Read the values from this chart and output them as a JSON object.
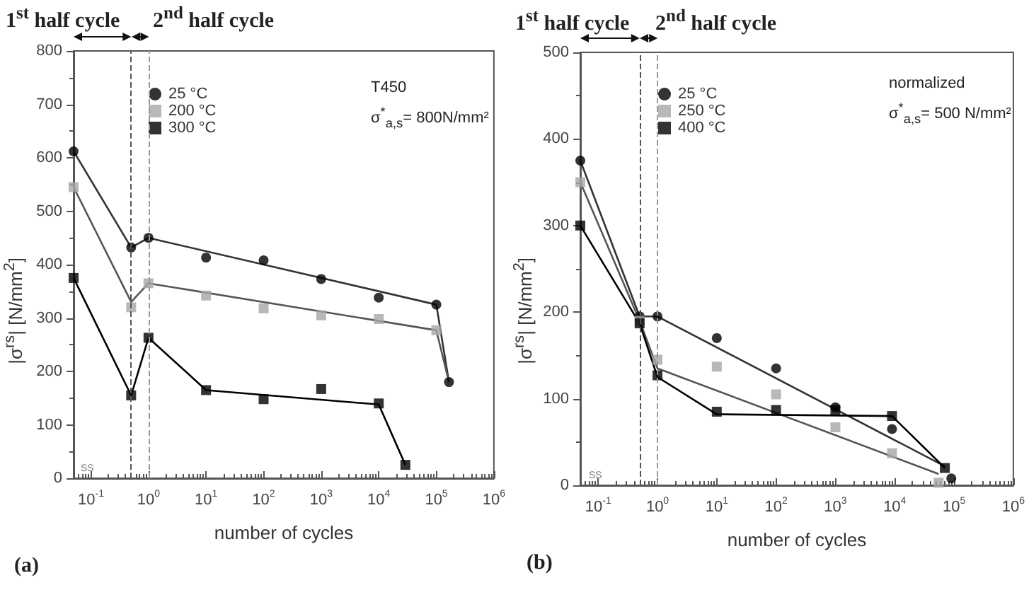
{
  "chart_data": [
    {
      "type": "scatter",
      "xlabel": "number of cycles",
      "ylabel": "|σ$^{rs}$| [N/mm$^{2}$]",
      "annotations": [
        "1$^{st}$ half cycle",
        "2$^{nd}$ half cycle",
        "T450",
        "σ$^{*}$$_{a,s}$= 800N/mm²",
        "SS",
        "(a)"
      ],
      "xlim": [
        0.05,
        1000000
      ],
      "ylim": [
        0,
        800
      ],
      "xticks": [
        {
          "value": 0.1,
          "label": "10$^{-1}$"
        },
        {
          "value": 1,
          "label": "10$^{0}$"
        },
        {
          "value": 10,
          "label": "10$^{1}$"
        },
        {
          "value": 100,
          "label": "10$^{2}$"
        },
        {
          "value": 1000,
          "label": "10$^{3}$"
        },
        {
          "value": 10000,
          "label": "10$^{4}$"
        },
        {
          "value": 100000,
          "label": "10$^{5}$"
        },
        {
          "value": 1000000,
          "label": "10$^{6}$"
        }
      ],
      "yticks": [
        0,
        100,
        200,
        300,
        400,
        500,
        600,
        700,
        800
      ],
      "log": "x",
      "grid": false,
      "legend": "top left",
      "ref_lines": [
        {
          "axis": "x",
          "value": 0.5,
          "line_style": "dashed",
          "color": "#555555"
        },
        {
          "axis": "x",
          "value": 1,
          "line_style": "dashed",
          "color": "#999999"
        }
      ],
      "series": [
        {
          "name": "25 °C",
          "marker": "circle",
          "color": "#000000",
          "x": [
            0.05,
            0.5,
            1,
            10,
            100,
            1000,
            10000,
            100000,
            166000
          ],
          "values": [
            612,
            432,
            450,
            413,
            408,
            373,
            338,
            325,
            180
          ]
        },
        {
          "name": "200 °C",
          "marker": "square",
          "color": "#a6a6a6",
          "x": [
            0.05,
            0.5,
            1,
            10,
            100,
            1000,
            10000,
            100000
          ],
          "values": [
            545,
            320,
            365,
            342,
            318,
            305,
            298,
            277
          ]
        },
        {
          "name": "300 °C",
          "marker": "square",
          "color": "#000000",
          "x": [
            0.05,
            0.5,
            1,
            10,
            100,
            1000,
            10000,
            29000
          ],
          "values": [
            375,
            155,
            263,
            165,
            148,
            167,
            140,
            25
          ]
        },
        {
          "type": "line",
          "marker": "none",
          "color": "#333333",
          "x": [
            0.05,
            0.5,
            1,
            100000,
            166000
          ],
          "values": [
            612,
            432,
            450,
            325,
            180
          ]
        },
        {
          "type": "line",
          "marker": "none",
          "color": "#555555",
          "x": [
            0.05,
            0.5,
            1,
            100000,
            166000
          ],
          "values": [
            545,
            330,
            365,
            277,
            180
          ]
        },
        {
          "type": "line",
          "marker": "none",
          "color": "#000000",
          "x": [
            0.05,
            0.5,
            1,
            10,
            10000,
            29000
          ],
          "values": [
            375,
            155,
            263,
            165,
            138,
            25
          ]
        }
      ]
    },
    {
      "type": "scatter",
      "xlabel": "number of cycles",
      "ylabel": "|σ$^{rs}$| [N/mm$^{2}$]",
      "annotations": [
        "1$^{st}$ half cycle",
        "2$^{nd}$ half cycle",
        "normalized",
        "σ$^{*}$$_{a,s}$= 500 N/mm²",
        "SS",
        "(b)"
      ],
      "xlim": [
        0.05,
        1000000
      ],
      "ylim": [
        0,
        500
      ],
      "xticks": [
        {
          "value": 0.1,
          "label": "10$^{-1}$"
        },
        {
          "value": 1,
          "label": "10$^{0}$"
        },
        {
          "value": 10,
          "label": "10$^{1}$"
        },
        {
          "value": 100,
          "label": "10$^{2}$"
        },
        {
          "value": 1000,
          "label": "10$^{3}$"
        },
        {
          "value": 10000,
          "label": "10$^{4}$"
        },
        {
          "value": 100000,
          "label": "10$^{5}$"
        },
        {
          "value": 1000000,
          "label": "10$^{6}$"
        }
      ],
      "yticks": [
        0,
        100,
        200,
        300,
        400,
        500
      ],
      "log": "x",
      "grid": false,
      "legend": "top left",
      "ref_lines": [
        {
          "axis": "x",
          "value": 0.5,
          "line_style": "dashed",
          "color": "#555555"
        },
        {
          "axis": "x",
          "value": 1,
          "line_style": "dashed",
          "color": "#999999"
        }
      ],
      "series": [
        {
          "name": "25 °C",
          "marker": "circle",
          "color": "#000000",
          "x": [
            0.05,
            0.5,
            1,
            10,
            100,
            1000,
            9000,
            90000
          ],
          "values": [
            375,
            195,
            195,
            170,
            135,
            90,
            65,
            8
          ]
        },
        {
          "name": "250 °C",
          "marker": "square",
          "color": "#a6a6a6",
          "x": [
            0.05,
            0.5,
            1,
            10,
            100,
            1000,
            9000,
            55000
          ],
          "values": [
            350,
            190,
            145,
            137,
            105,
            67,
            37,
            3
          ]
        },
        {
          "name": "400 °C",
          "marker": "square",
          "color": "#000000",
          "x": [
            0.05,
            0.5,
            1,
            10,
            100,
            1000,
            9000,
            70000
          ],
          "values": [
            300,
            187,
            127,
            85,
            87,
            87,
            80,
            20
          ]
        },
        {
          "type": "line",
          "marker": "none",
          "color": "#333333",
          "x": [
            0.05,
            0.5,
            1,
            70000
          ],
          "values": [
            375,
            195,
            195,
            22
          ]
        },
        {
          "type": "line",
          "marker": "none",
          "color": "#555555",
          "x": [
            0.05,
            0.5,
            1,
            55000
          ],
          "values": [
            350,
            190,
            135,
            13
          ]
        },
        {
          "type": "line",
          "marker": "none",
          "color": "#000000",
          "x": [
            0.05,
            0.5,
            1,
            10,
            9000,
            70000
          ],
          "values": [
            300,
            187,
            125,
            82,
            80,
            20
          ]
        }
      ]
    }
  ]
}
